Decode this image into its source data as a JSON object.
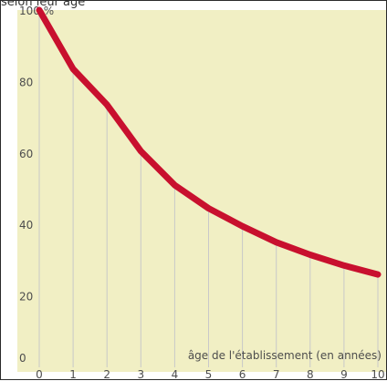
{
  "figure": {
    "top_text": "selon leur âge"
  },
  "chart_data": {
    "type": "line",
    "title": "selon leur âge",
    "xlabel": "âge de l'établissement (en années)",
    "ylabel": "",
    "ylim": [
      0,
      100
    ],
    "xlim": [
      0,
      10
    ],
    "x_ticks": [
      "0",
      "1",
      "2",
      "3",
      "4",
      "5",
      "6",
      "7",
      "8",
      "9",
      "10"
    ],
    "y_ticks": [
      {
        "value": 0,
        "label": "0"
      },
      {
        "value": 20,
        "label": "20"
      },
      {
        "value": 40,
        "label": "40"
      },
      {
        "value": 60,
        "label": "60"
      },
      {
        "value": 80,
        "label": "80"
      },
      {
        "value": 100,
        "label": "100 %"
      }
    ],
    "series": [
      {
        "color": "#c8102e",
        "x": [
          0,
          1,
          2,
          3,
          4,
          5,
          6,
          7,
          8,
          9,
          10
        ],
        "values": [
          100,
          83.5,
          73.5,
          60.5,
          51,
          44.5,
          39.5,
          35,
          31.5,
          28.5,
          26
        ]
      }
    ],
    "grid": "vertical",
    "colors": {
      "background": "#f1efc4",
      "grid": "#c9c9c9",
      "line": "#c8102e"
    }
  }
}
